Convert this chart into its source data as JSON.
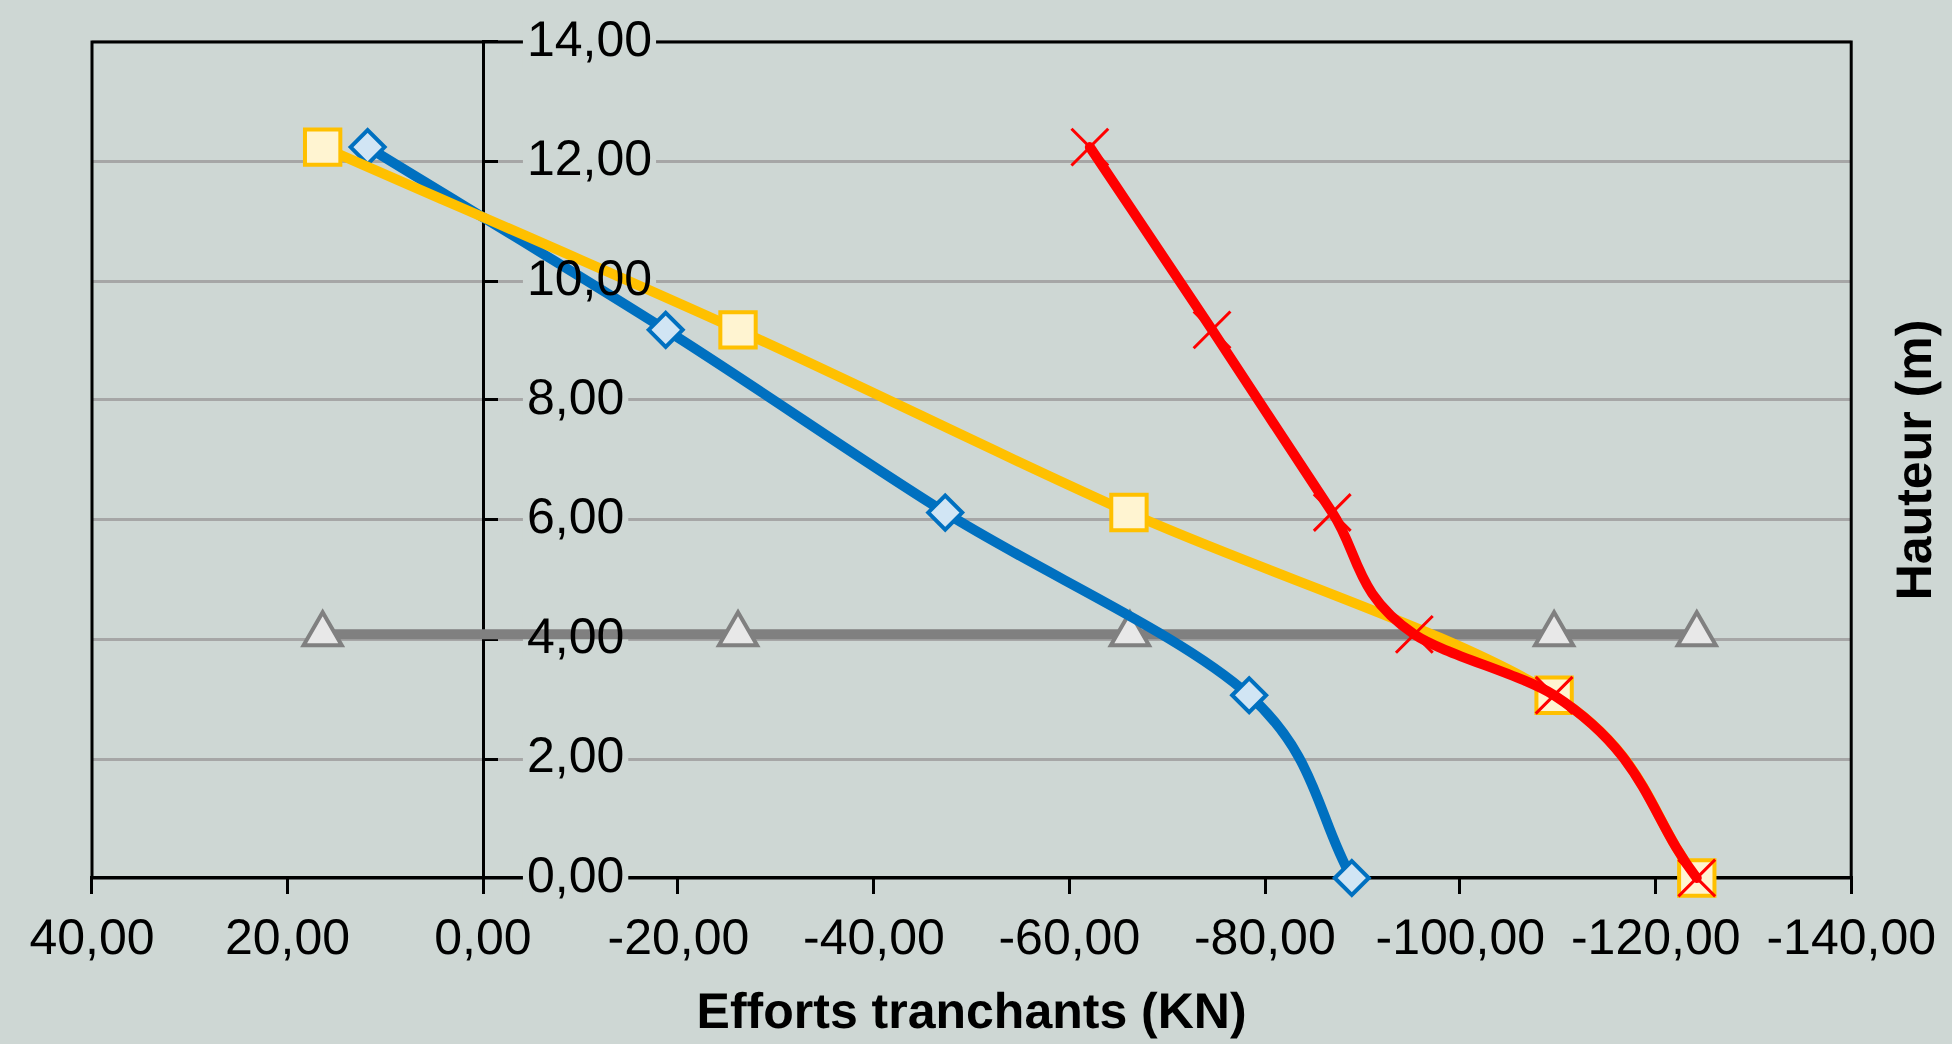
{
  "chart_data": {
    "type": "line",
    "xlabel": "Efforts tranchants (KN)",
    "ylabel": "Hauteur (m)",
    "xlim": [
      40,
      -140
    ],
    "xticks": [
      {
        "value": 40,
        "label": "40,00"
      },
      {
        "value": 20,
        "label": "20,00"
      },
      {
        "value": 0,
        "label": "0,00"
      },
      {
        "value": -20,
        "label": "-20,00"
      },
      {
        "value": -40,
        "label": "-40,00"
      },
      {
        "value": -60,
        "label": "-60,00"
      },
      {
        "value": -80,
        "label": "-80,00"
      },
      {
        "value": -100,
        "label": "-100,00"
      },
      {
        "value": -120,
        "label": "-120,00"
      },
      {
        "value": -140,
        "label": "-140,00"
      }
    ],
    "ylim": [
      0,
      14
    ],
    "yticks": [
      {
        "value": 0,
        "label": "0,00"
      },
      {
        "value": 2,
        "label": "2,00"
      },
      {
        "value": 4,
        "label": "4,00"
      },
      {
        "value": 6,
        "label": "6,00"
      },
      {
        "value": 8,
        "label": "8,00"
      },
      {
        "value": 10,
        "label": "10,00"
      },
      {
        "value": 12,
        "label": "12,00"
      },
      {
        "value": 14,
        "label": "14,00"
      }
    ],
    "grid": "y",
    "legend": false,
    "series": [
      {
        "color": "#808080",
        "marker": "triangle",
        "x": [
          16.4,
          -26.1,
          -66.2,
          -109.6,
          -124.2
        ],
        "values": [
          4.08,
          4.08,
          4.08,
          4.08,
          4.08
        ]
      },
      {
        "color": "#0070c0",
        "marker": "diamond",
        "x": [
          11.8,
          -18.7,
          -47.3,
          -78.4,
          -88.9
        ],
        "values": [
          12.24,
          9.18,
          6.12,
          3.06,
          0
        ]
      },
      {
        "color": "#ffc000",
        "marker": "square",
        "x": [
          16.4,
          -26.1,
          -66.1,
          -109.6,
          -124.2
        ],
        "values": [
          12.24,
          9.18,
          6.12,
          3.06,
          0
        ]
      },
      {
        "color": "#ff0000",
        "marker": "cross",
        "x": [
          -62.1,
          -74.6,
          -86.9,
          -95.3,
          -109.6,
          -124.2
        ],
        "values": [
          12.24,
          9.18,
          6.12,
          4.08,
          3.06,
          0
        ]
      }
    ]
  }
}
